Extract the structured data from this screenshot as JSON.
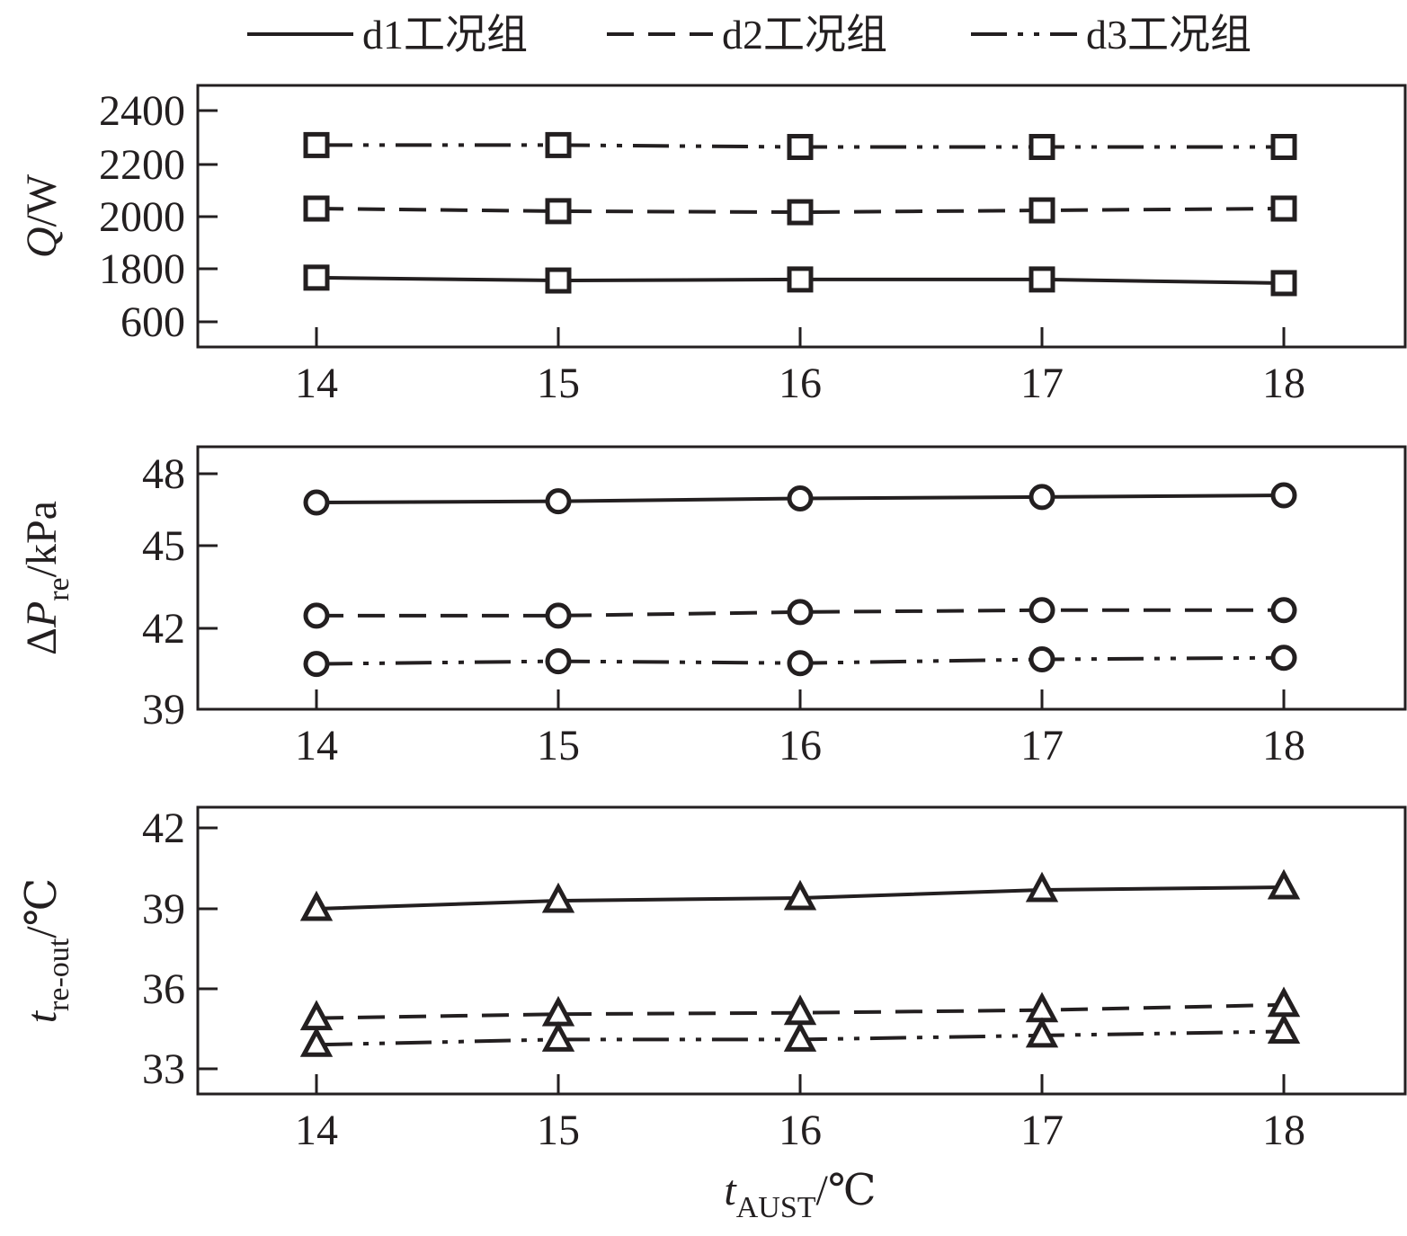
{
  "legend": {
    "position": "top",
    "items": [
      {
        "label": "d1工况组",
        "style": "solid"
      },
      {
        "label": "d2工况组",
        "style": "dashed"
      },
      {
        "label": "d3工况组",
        "style": "dash-dot-dot"
      }
    ]
  },
  "colors": {
    "line": "#231f20",
    "background": "#ffffff"
  },
  "chart_data": [
    {
      "type": "line",
      "marker": "square",
      "x": [
        14,
        15,
        16,
        17,
        18
      ],
      "x_ticks": [
        "14",
        "15",
        "16",
        "17",
        "18"
      ],
      "ylabel": {
        "symbol": "Q",
        "prefix": "",
        "subscript": "",
        "unit": "/W"
      },
      "y_ticks": [
        "600",
        "1800",
        "2000",
        "2200",
        "2400"
      ],
      "y_axis_break": true,
      "ylim": [
        1600,
        2450
      ],
      "series": [
        {
          "name": "d1工况组",
          "values": [
            1766,
            1755,
            1759,
            1759,
            1745
          ]
        },
        {
          "name": "d2工况组",
          "values": [
            2031,
            2021,
            2017,
            2024,
            2031
          ]
        },
        {
          "name": "d3工况组",
          "values": [
            2272,
            2272,
            2265,
            2265,
            2265
          ]
        }
      ]
    },
    {
      "type": "line",
      "marker": "circle",
      "x": [
        14,
        15,
        16,
        17,
        18
      ],
      "x_ticks": [
        "14",
        "15",
        "16",
        "17",
        "18"
      ],
      "ylabel": {
        "symbol": "P",
        "prefix": "Δ",
        "subscript": "re",
        "unit": "/kPa"
      },
      "y_ticks": [
        "39",
        "42",
        "45",
        "48"
      ],
      "ylim": [
        39,
        48.8
      ],
      "series": [
        {
          "name": "d1工况组",
          "values": [
            46.8,
            46.85,
            46.97,
            47.03,
            47.1
          ]
        },
        {
          "name": "d2工况组",
          "values": [
            42.46,
            42.46,
            42.59,
            42.66,
            42.66
          ]
        },
        {
          "name": "d3工况组",
          "values": [
            40.68,
            40.78,
            40.71,
            40.85,
            40.91
          ]
        }
      ]
    },
    {
      "type": "line",
      "marker": "triangle",
      "x": [
        14,
        15,
        16,
        17,
        18
      ],
      "x_ticks": [
        "14",
        "15",
        "16",
        "17",
        "18"
      ],
      "ylabel": {
        "symbol": "t",
        "prefix": "",
        "subscript": "re-out",
        "unit": "/℃"
      },
      "xlabel": {
        "symbol": "t",
        "subscript": "AUST",
        "unit": "/℃"
      },
      "y_ticks": [
        "33",
        "36",
        "39",
        "42"
      ],
      "ylim": [
        32.1,
        42
      ],
      "series": [
        {
          "name": "d1工况组",
          "values": [
            39.0,
            39.3,
            39.4,
            39.7,
            39.8
          ]
        },
        {
          "name": "d2工况组",
          "values": [
            34.9,
            35.05,
            35.1,
            35.2,
            35.4
          ]
        },
        {
          "name": "d3工况组",
          "values": [
            33.9,
            34.1,
            34.1,
            34.25,
            34.4
          ]
        }
      ]
    }
  ]
}
